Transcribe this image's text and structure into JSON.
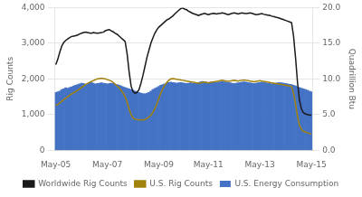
{
  "chart_data": {
    "type": "bar",
    "ylabel": "Rig Counts",
    "y2label": "Quadrillion Btu",
    "categories": [
      "May-05",
      null,
      null,
      null,
      null,
      null,
      null,
      null,
      null,
      null,
      null,
      null,
      null,
      null,
      null,
      null,
      null,
      null,
      null,
      null,
      null,
      null,
      null,
      null,
      null,
      null,
      "May-07",
      null,
      null,
      null,
      null,
      null,
      null,
      null,
      null,
      null,
      null,
      null,
      null,
      null,
      null,
      null,
      null,
      null,
      null,
      null,
      null,
      null,
      null,
      null,
      null,
      null,
      "May-09",
      null,
      null,
      null,
      null,
      null,
      null,
      null,
      null,
      null,
      null,
      null,
      null,
      null,
      null,
      null,
      null,
      null,
      null,
      null,
      null,
      null,
      null,
      null,
      null,
      "May-11",
      null,
      null,
      null,
      null,
      null,
      null,
      null,
      null,
      null,
      null,
      null,
      null,
      null,
      null,
      null,
      null,
      null,
      null,
      null,
      null,
      null,
      null,
      null,
      null,
      null,
      "May-13",
      null,
      null,
      null,
      null,
      null,
      null,
      null,
      null,
      null,
      null,
      null,
      null,
      null,
      null,
      null,
      null,
      null,
      null,
      null,
      null,
      null,
      null,
      null,
      null,
      null,
      "May-15"
    ],
    "ylim": [
      0,
      4000
    ],
    "yticks": [
      0,
      {
        "value": 1000,
        "label": "1,000"
      },
      {
        "value": 2000,
        "label": "2,000"
      },
      {
        "value": 3000,
        "label": "3,000"
      },
      {
        "value": 4000,
        "label": "4,000"
      }
    ],
    "y2lim": [
      0.0,
      20.0
    ],
    "y2ticks": [
      {
        "value": 0.0,
        "label": "0.0"
      },
      {
        "value": 5.0,
        "label": "5.0"
      },
      {
        "value": 10.0,
        "label": "10.0"
      },
      {
        "value": 15.0,
        "label": "15.0"
      },
      {
        "value": 20.0,
        "label": "20.0"
      }
    ],
    "grid": true,
    "legend": "bottom",
    "series": [
      {
        "name": "U.S. Energy Consumption",
        "type": "bar",
        "color": "#4472C4",
        "values": [
          1620,
          1640,
          1660,
          1700,
          1720,
          1750,
          1740,
          1760,
          1780,
          1800,
          1820,
          1840,
          1860,
          1880,
          1870,
          1850,
          1870,
          1890,
          1900,
          1880,
          1860,
          1870,
          1880,
          1890,
          1880,
          1870,
          1860,
          1870,
          1880,
          1870,
          1850,
          1840,
          1820,
          1800,
          1780,
          1760,
          1740,
          1720,
          1700,
          1680,
          1660,
          1640,
          1620,
          1600,
          1590,
          1580,
          1600,
          1620,
          1660,
          1700,
          1730,
          1760,
          1790,
          1820,
          1840,
          1860,
          1880,
          1900,
          1910,
          1900,
          1890,
          1880,
          1890,
          1900,
          1890,
          1880,
          1870,
          1880,
          1890,
          1880,
          1870,
          1880,
          1900,
          1920,
          1930,
          1920,
          1910,
          1900,
          1910,
          1920,
          1910,
          1900,
          1910,
          1920,
          1930,
          1920,
          1910,
          1900,
          1890,
          1880,
          1870,
          1880,
          1890,
          1900,
          1910,
          1920,
          1910,
          1900,
          1890,
          1880,
          1870,
          1880,
          1890,
          1900,
          1910,
          1900,
          1890,
          1880,
          1870,
          1860,
          1870,
          1880,
          1890,
          1900,
          1890,
          1880,
          1870,
          1860,
          1850,
          1840,
          1820,
          1800,
          1780,
          1760,
          1740,
          1720,
          1700,
          1680,
          1660,
          1640
        ]
      },
      {
        "name": "U.S. Rig Counts",
        "type": "line",
        "color": "#A0820D",
        "values": [
          1250,
          1280,
          1330,
          1370,
          1420,
          1460,
          1500,
          1540,
          1580,
          1610,
          1640,
          1680,
          1720,
          1760,
          1800,
          1840,
          1870,
          1900,
          1930,
          1950,
          1980,
          2000,
          2010,
          2020,
          2010,
          2000,
          1980,
          1960,
          1940,
          1900,
          1850,
          1800,
          1750,
          1680,
          1600,
          1500,
          1350,
          1150,
          1000,
          900,
          870,
          860,
          855,
          850,
          845,
          860,
          890,
          930,
          980,
          1060,
          1160,
          1300,
          1450,
          1600,
          1720,
          1820,
          1900,
          1960,
          2000,
          2010,
          2000,
          1990,
          1980,
          1970,
          1960,
          1950,
          1940,
          1930,
          1920,
          1910,
          1900,
          1890,
          1880,
          1890,
          1900,
          1910,
          1900,
          1890,
          1900,
          1910,
          1920,
          1930,
          1940,
          1950,
          1960,
          1950,
          1940,
          1930,
          1940,
          1950,
          1960,
          1950,
          1940,
          1950,
          1960,
          1970,
          1960,
          1950,
          1940,
          1930,
          1920,
          1930,
          1940,
          1950,
          1940,
          1930,
          1920,
          1910,
          1900,
          1890,
          1880,
          1870,
          1860,
          1850,
          1840,
          1830,
          1820,
          1810,
          1800,
          1790,
          1600,
          1300,
          950,
          700,
          580,
          530,
          510,
          490,
          470,
          450
        ]
      },
      {
        "name": "Worldwide Rig Counts",
        "type": "line",
        "color": "#1a1a1a",
        "values": [
          2400,
          2550,
          2750,
          2920,
          3020,
          3080,
          3120,
          3160,
          3190,
          3200,
          3210,
          3230,
          3260,
          3280,
          3300,
          3310,
          3300,
          3290,
          3280,
          3300,
          3290,
          3280,
          3290,
          3300,
          3310,
          3350,
          3370,
          3380,
          3350,
          3320,
          3280,
          3250,
          3200,
          3150,
          3100,
          3050,
          2700,
          2200,
          1800,
          1640,
          1600,
          1620,
          1700,
          1880,
          2100,
          2350,
          2600,
          2800,
          3000,
          3150,
          3280,
          3380,
          3450,
          3500,
          3550,
          3600,
          3650,
          3680,
          3720,
          3760,
          3820,
          3870,
          3920,
          3970,
          3990,
          3960,
          3940,
          3900,
          3870,
          3840,
          3820,
          3800,
          3780,
          3800,
          3820,
          3840,
          3820,
          3800,
          3820,
          3830,
          3840,
          3820,
          3830,
          3840,
          3850,
          3840,
          3820,
          3800,
          3820,
          3840,
          3850,
          3840,
          3820,
          3840,
          3850,
          3840,
          3830,
          3840,
          3850,
          3840,
          3820,
          3800,
          3810,
          3820,
          3830,
          3810,
          3800,
          3790,
          3780,
          3760,
          3750,
          3730,
          3720,
          3700,
          3680,
          3660,
          3640,
          3620,
          3600,
          3580,
          3200,
          2600,
          1900,
          1400,
          1150,
          1050,
          1020,
          1000,
          990,
          980
        ]
      }
    ]
  }
}
